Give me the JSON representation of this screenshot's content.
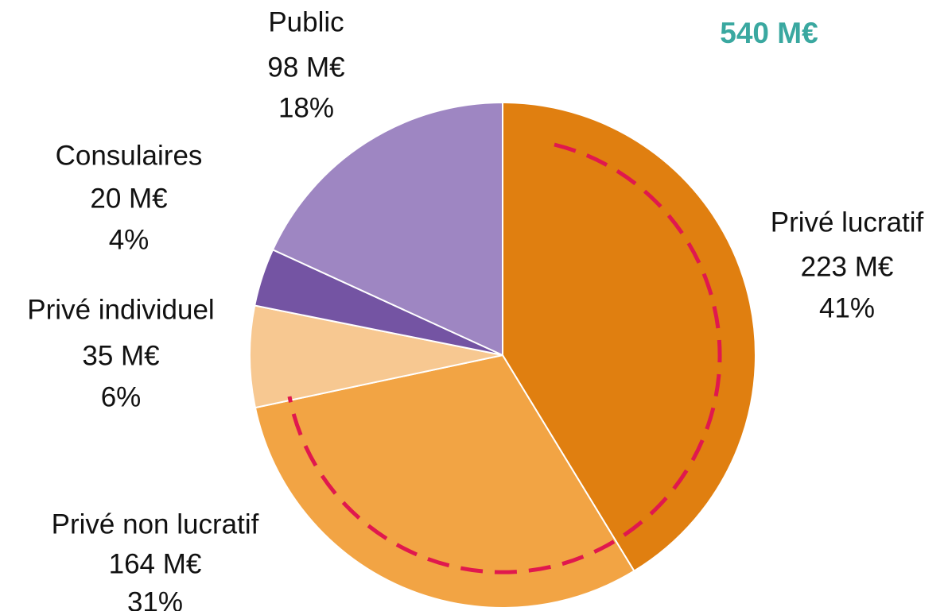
{
  "chart_data": {
    "type": "pie",
    "title": "540 M€",
    "categories": [
      "Privé lucratif",
      "Privé non lucratif",
      "Privé individuel",
      "Consulaires",
      "Public"
    ],
    "values": [
      223,
      164,
      35,
      20,
      98
    ],
    "value_labels": [
      "223 M€",
      "164 M€",
      "35 M€",
      "20 M€",
      "98 M€"
    ],
    "percentages": [
      41,
      31,
      6,
      4,
      18
    ],
    "percentage_labels": [
      "41%",
      "31%",
      "6%",
      "4%",
      "18%"
    ],
    "colors": [
      "#e07f10",
      "#f2a444",
      "#f7c891",
      "#7454a3",
      "#9e86c2"
    ]
  }
}
